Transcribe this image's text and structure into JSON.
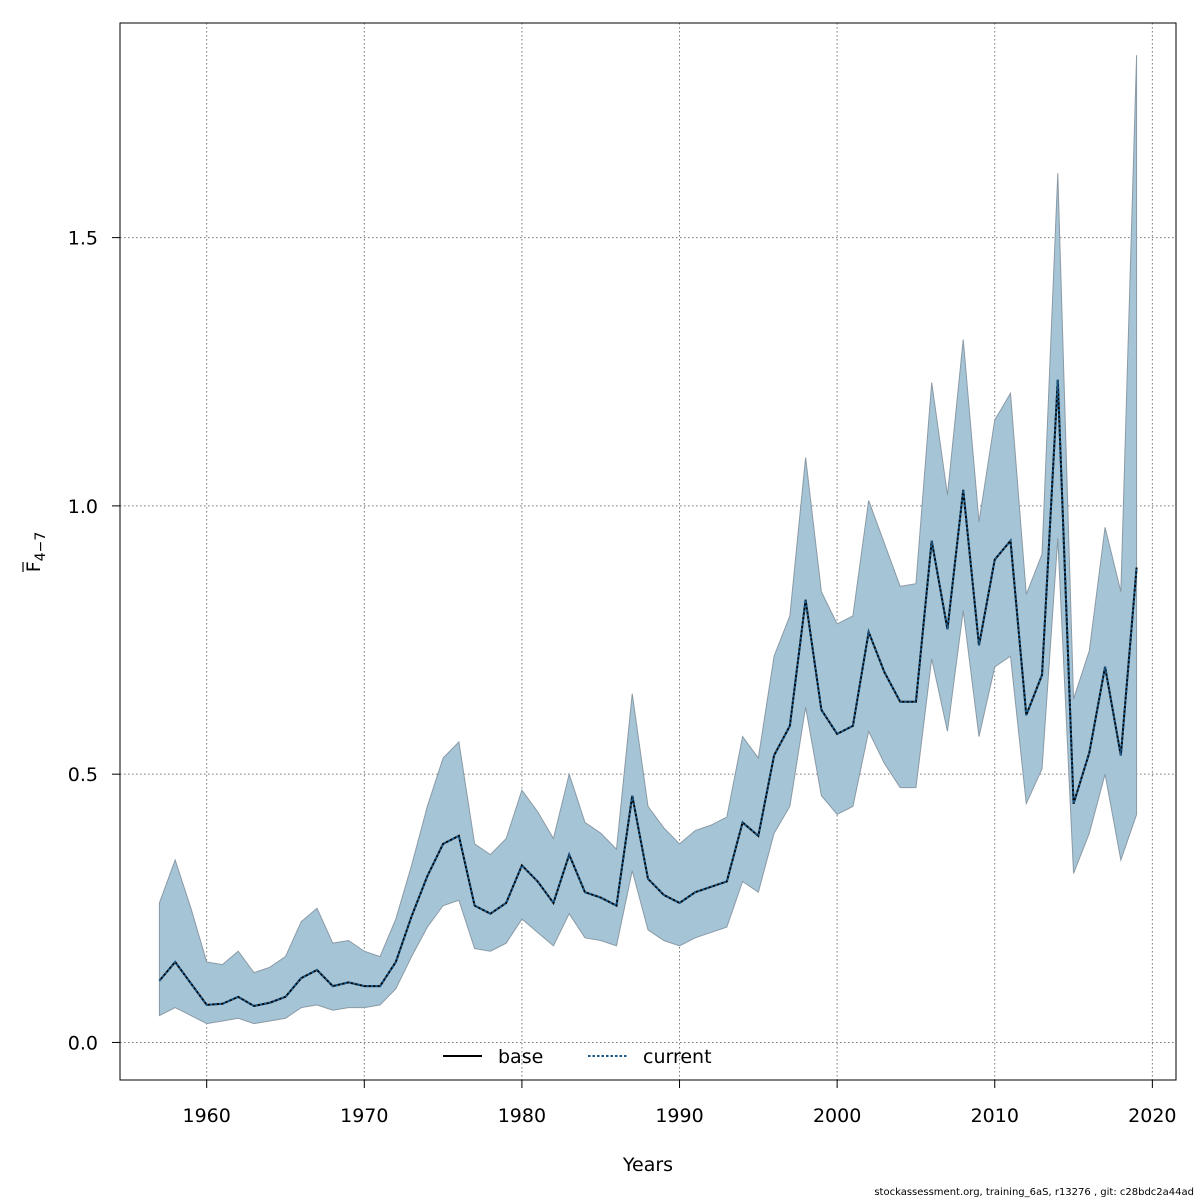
{
  "chart_data": {
    "type": "line",
    "xlabel": "Years",
    "ylabel_main": "F",
    "ylabel_sub": "4−7",
    "xlim": [
      1954.5,
      2021.5
    ],
    "ylim": [
      -0.07,
      1.9
    ],
    "x_ticks": [
      1960,
      1970,
      1980,
      1990,
      2000,
      2010,
      2020
    ],
    "y_ticks": [
      0.0,
      0.5,
      1.0,
      1.5
    ],
    "y_tick_labels": [
      "0.0",
      "0.5",
      "1.0",
      "1.5"
    ],
    "grid": true,
    "legend_position": "bottom",
    "colors": {
      "band": "#a5c4d6",
      "band_edge": "#8a9aa6",
      "base": "#000000",
      "current": "#1a5a8a",
      "grid": "#777777"
    },
    "years": [
      1957,
      1958,
      1959,
      1960,
      1961,
      1962,
      1963,
      1964,
      1965,
      1966,
      1967,
      1968,
      1969,
      1970,
      1971,
      1972,
      1973,
      1974,
      1975,
      1976,
      1977,
      1978,
      1979,
      1980,
      1981,
      1982,
      1983,
      1984,
      1985,
      1986,
      1987,
      1988,
      1989,
      1990,
      1991,
      1992,
      1993,
      1994,
      1995,
      1996,
      1997,
      1998,
      1999,
      2000,
      2001,
      2002,
      2003,
      2004,
      2005,
      2006,
      2007,
      2008,
      2009,
      2010,
      2011,
      2012,
      2013,
      2014,
      2015,
      2016,
      2017,
      2018,
      2019
    ],
    "upper": [
      0.26,
      0.34,
      0.25,
      0.15,
      0.145,
      0.17,
      0.13,
      0.14,
      0.16,
      0.225,
      0.25,
      0.185,
      0.19,
      0.17,
      0.16,
      0.23,
      0.33,
      0.44,
      0.53,
      0.56,
      0.37,
      0.35,
      0.38,
      0.47,
      0.43,
      0.38,
      0.5,
      0.41,
      0.39,
      0.36,
      0.65,
      0.44,
      0.4,
      0.37,
      0.395,
      0.405,
      0.42,
      0.57,
      0.53,
      0.72,
      0.795,
      1.09,
      0.84,
      0.78,
      0.795,
      1.01,
      0.93,
      0.85,
      0.855,
      1.23,
      1.02,
      1.31,
      0.97,
      1.16,
      1.21,
      0.835,
      0.91,
      1.62,
      0.64,
      0.73,
      0.96,
      0.84,
      1.84
    ],
    "lower": [
      0.05,
      0.065,
      0.05,
      0.035,
      0.04,
      0.045,
      0.035,
      0.04,
      0.045,
      0.065,
      0.07,
      0.06,
      0.065,
      0.065,
      0.07,
      0.1,
      0.16,
      0.215,
      0.255,
      0.265,
      0.175,
      0.17,
      0.185,
      0.23,
      0.205,
      0.18,
      0.24,
      0.195,
      0.19,
      0.18,
      0.32,
      0.21,
      0.19,
      0.18,
      0.195,
      0.205,
      0.215,
      0.3,
      0.28,
      0.39,
      0.44,
      0.625,
      0.46,
      0.425,
      0.44,
      0.58,
      0.52,
      0.475,
      0.475,
      0.715,
      0.58,
      0.805,
      0.57,
      0.7,
      0.72,
      0.445,
      0.51,
      0.94,
      0.315,
      0.39,
      0.5,
      0.34,
      0.425
    ],
    "series": [
      {
        "name": "base",
        "values": [
          0.115,
          0.15,
          0.11,
          0.07,
          0.072,
          0.085,
          0.068,
          0.074,
          0.085,
          0.12,
          0.135,
          0.105,
          0.112,
          0.105,
          0.105,
          0.15,
          0.235,
          0.31,
          0.37,
          0.385,
          0.255,
          0.24,
          0.26,
          0.33,
          0.3,
          0.26,
          0.35,
          0.28,
          0.27,
          0.255,
          0.46,
          0.305,
          0.275,
          0.26,
          0.28,
          0.29,
          0.3,
          0.41,
          0.385,
          0.535,
          0.59,
          0.825,
          0.62,
          0.575,
          0.59,
          0.765,
          0.69,
          0.635,
          0.635,
          0.935,
          0.77,
          1.03,
          0.74,
          0.9,
          0.935,
          0.61,
          0.685,
          1.235,
          0.445,
          0.54,
          0.7,
          0.535,
          0.885
        ]
      },
      {
        "name": "current",
        "values": [
          0.115,
          0.15,
          0.11,
          0.07,
          0.072,
          0.085,
          0.068,
          0.074,
          0.085,
          0.12,
          0.135,
          0.105,
          0.112,
          0.105,
          0.105,
          0.15,
          0.235,
          0.31,
          0.37,
          0.385,
          0.255,
          0.24,
          0.26,
          0.33,
          0.3,
          0.26,
          0.35,
          0.28,
          0.27,
          0.255,
          0.46,
          0.305,
          0.275,
          0.26,
          0.28,
          0.29,
          0.3,
          0.41,
          0.385,
          0.535,
          0.59,
          0.825,
          0.62,
          0.575,
          0.59,
          0.765,
          0.69,
          0.635,
          0.635,
          0.935,
          0.77,
          1.03,
          0.74,
          0.9,
          0.935,
          0.61,
          0.685,
          1.235,
          0.445,
          0.54,
          0.7,
          0.535,
          0.885
        ]
      }
    ]
  },
  "footnote": "stockassessment.org, training_6aS, r13276 , git: c28bdc2a44ad"
}
